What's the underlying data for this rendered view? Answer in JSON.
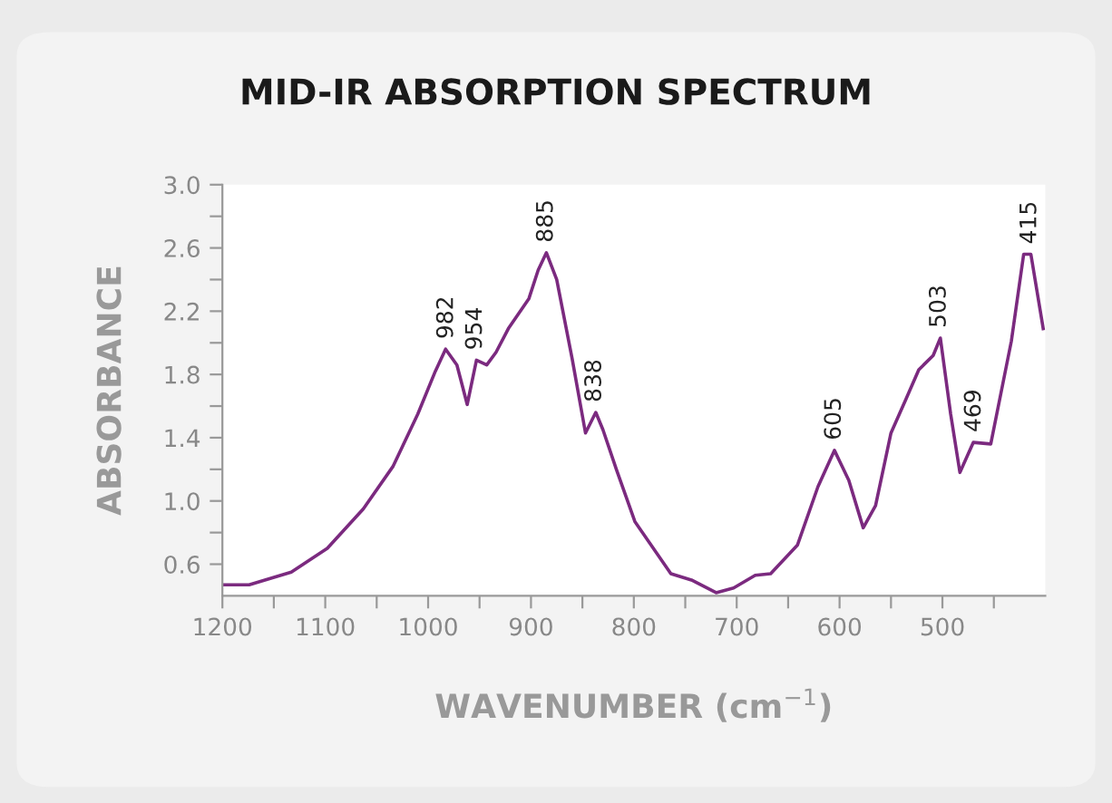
{
  "chart_data": {
    "type": "line",
    "title": "MID-IR ABSORPTION SPECTRUM",
    "xlabel": "WAVENUMBER (cm$^{−1}$)",
    "ylabel": "ABSORBANCE",
    "series": [
      {
        "color": "#7b2a7f",
        "x": [
          1199,
          1174,
          1133,
          1098,
          1063,
          1034,
          1010,
          993,
          983,
          972,
          962,
          953,
          943,
          934,
          922,
          902,
          893,
          885,
          875,
          860,
          847,
          837,
          830,
          817,
          799,
          764,
          744,
          720,
          703,
          682,
          667,
          641,
          621,
          605,
          591,
          577,
          565,
          550,
          535,
          523,
          509,
          502,
          492,
          483,
          470,
          453,
          433,
          421,
          414,
          402
        ],
        "values": [
          0.47,
          0.47,
          0.55,
          0.7,
          0.95,
          1.22,
          1.55,
          1.82,
          1.96,
          1.86,
          1.61,
          1.89,
          1.86,
          1.94,
          2.09,
          2.28,
          2.46,
          2.57,
          2.4,
          1.9,
          1.43,
          1.56,
          1.45,
          1.2,
          0.87,
          0.54,
          0.5,
          0.42,
          0.45,
          0.53,
          0.54,
          0.72,
          1.09,
          1.32,
          1.13,
          0.83,
          0.97,
          1.43,
          1.65,
          1.83,
          1.92,
          2.03,
          1.55,
          1.18,
          1.37,
          1.36,
          2.01,
          2.56,
          2.56,
          2.09
        ]
      }
    ],
    "annotations": [
      {
        "text": "982",
        "x": 982,
        "y": 1.96
      },
      {
        "text": "954",
        "x": 954,
        "y": 1.89
      },
      {
        "text": "885",
        "x": 885,
        "y": 2.57
      },
      {
        "text": "838",
        "x": 838,
        "y": 1.56
      },
      {
        "text": "605",
        "x": 605,
        "y": 1.32
      },
      {
        "text": "503",
        "x": 503,
        "y": 2.03
      },
      {
        "text": "469",
        "x": 469,
        "y": 1.37
      },
      {
        "text": "415",
        "x": 415,
        "y": 2.56
      }
    ],
    "xlim": [
      1200,
      400
    ],
    "ylim": [
      0.4,
      3.0
    ],
    "xticks": [
      1200,
      {
        "value": 1150,
        "label": null
      },
      1100,
      {
        "value": 1050,
        "label": null
      },
      1000,
      {
        "value": 950,
        "label": null
      },
      900,
      {
        "value": 850,
        "label": null
      },
      800,
      {
        "value": 750,
        "label": null
      },
      700,
      {
        "value": 650,
        "label": null
      },
      600,
      {
        "value": 550,
        "label": null
      },
      500,
      {
        "value": 450,
        "label": null
      }
    ],
    "yticks": [
      {
        "value": 0.6,
        "label": "0.6"
      },
      {
        "value": 0.8,
        "label": null
      },
      {
        "value": 1.0,
        "label": "1.0"
      },
      {
        "value": 1.2,
        "label": null
      },
      {
        "value": 1.4,
        "label": "1.4"
      },
      {
        "value": 1.6,
        "label": null
      },
      {
        "value": 1.8,
        "label": "1.8"
      },
      {
        "value": 2.0,
        "label": null
      },
      {
        "value": 2.2,
        "label": "2.2"
      },
      {
        "value": 2.4,
        "label": null
      },
      {
        "value": 2.6,
        "label": "2.6"
      },
      {
        "value": 2.8,
        "label": null
      },
      {
        "value": 3.0,
        "label": "3.0"
      }
    ],
    "grid": false,
    "legend": false,
    "marker": "none",
    "line_style": "solid"
  }
}
